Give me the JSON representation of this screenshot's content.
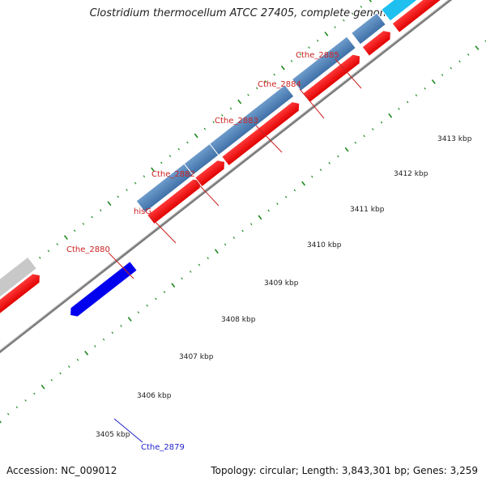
{
  "title": "Clostridium thermocellum ATCC 27405, complete genome",
  "footer": {
    "accession": "Accession: NC_009012",
    "summary": "Topology: circular; Length: 3,843,301 bp; Genes: 3,259"
  },
  "scale_unit": "kbp",
  "tick_labels": [
    "3405 kbp",
    "3406 kbp",
    "3407 kbp",
    "3408 kbp",
    "3409 kbp",
    "3410 kbp",
    "3411 kbp",
    "3412 kbp",
    "3413 kbp"
  ],
  "gene_labels": [
    {
      "name": "Cthe_2879",
      "color": "#1f1fcc"
    },
    {
      "name": "Cthe_2880",
      "color": "#cc2222"
    },
    {
      "name": "hisG",
      "color": "#cc2222"
    },
    {
      "name": "Cthe_2882",
      "color": "#cc2222"
    },
    {
      "name": "Cthe_2883",
      "color": "#cc2222"
    },
    {
      "name": "Cthe_2884",
      "color": "#cc2222"
    },
    {
      "name": "Cthe_2885",
      "color": "#cc2222"
    }
  ],
  "colors": {
    "backbone": "#8c8c8c",
    "cds_forward": "#4a7fb5",
    "cds_highlight": "#1ec0f0",
    "cds_other": "#c8c8c8",
    "gene_red": "#ff0000",
    "gene_blue": "#0000ee",
    "tick": "#1e8a1e"
  }
}
